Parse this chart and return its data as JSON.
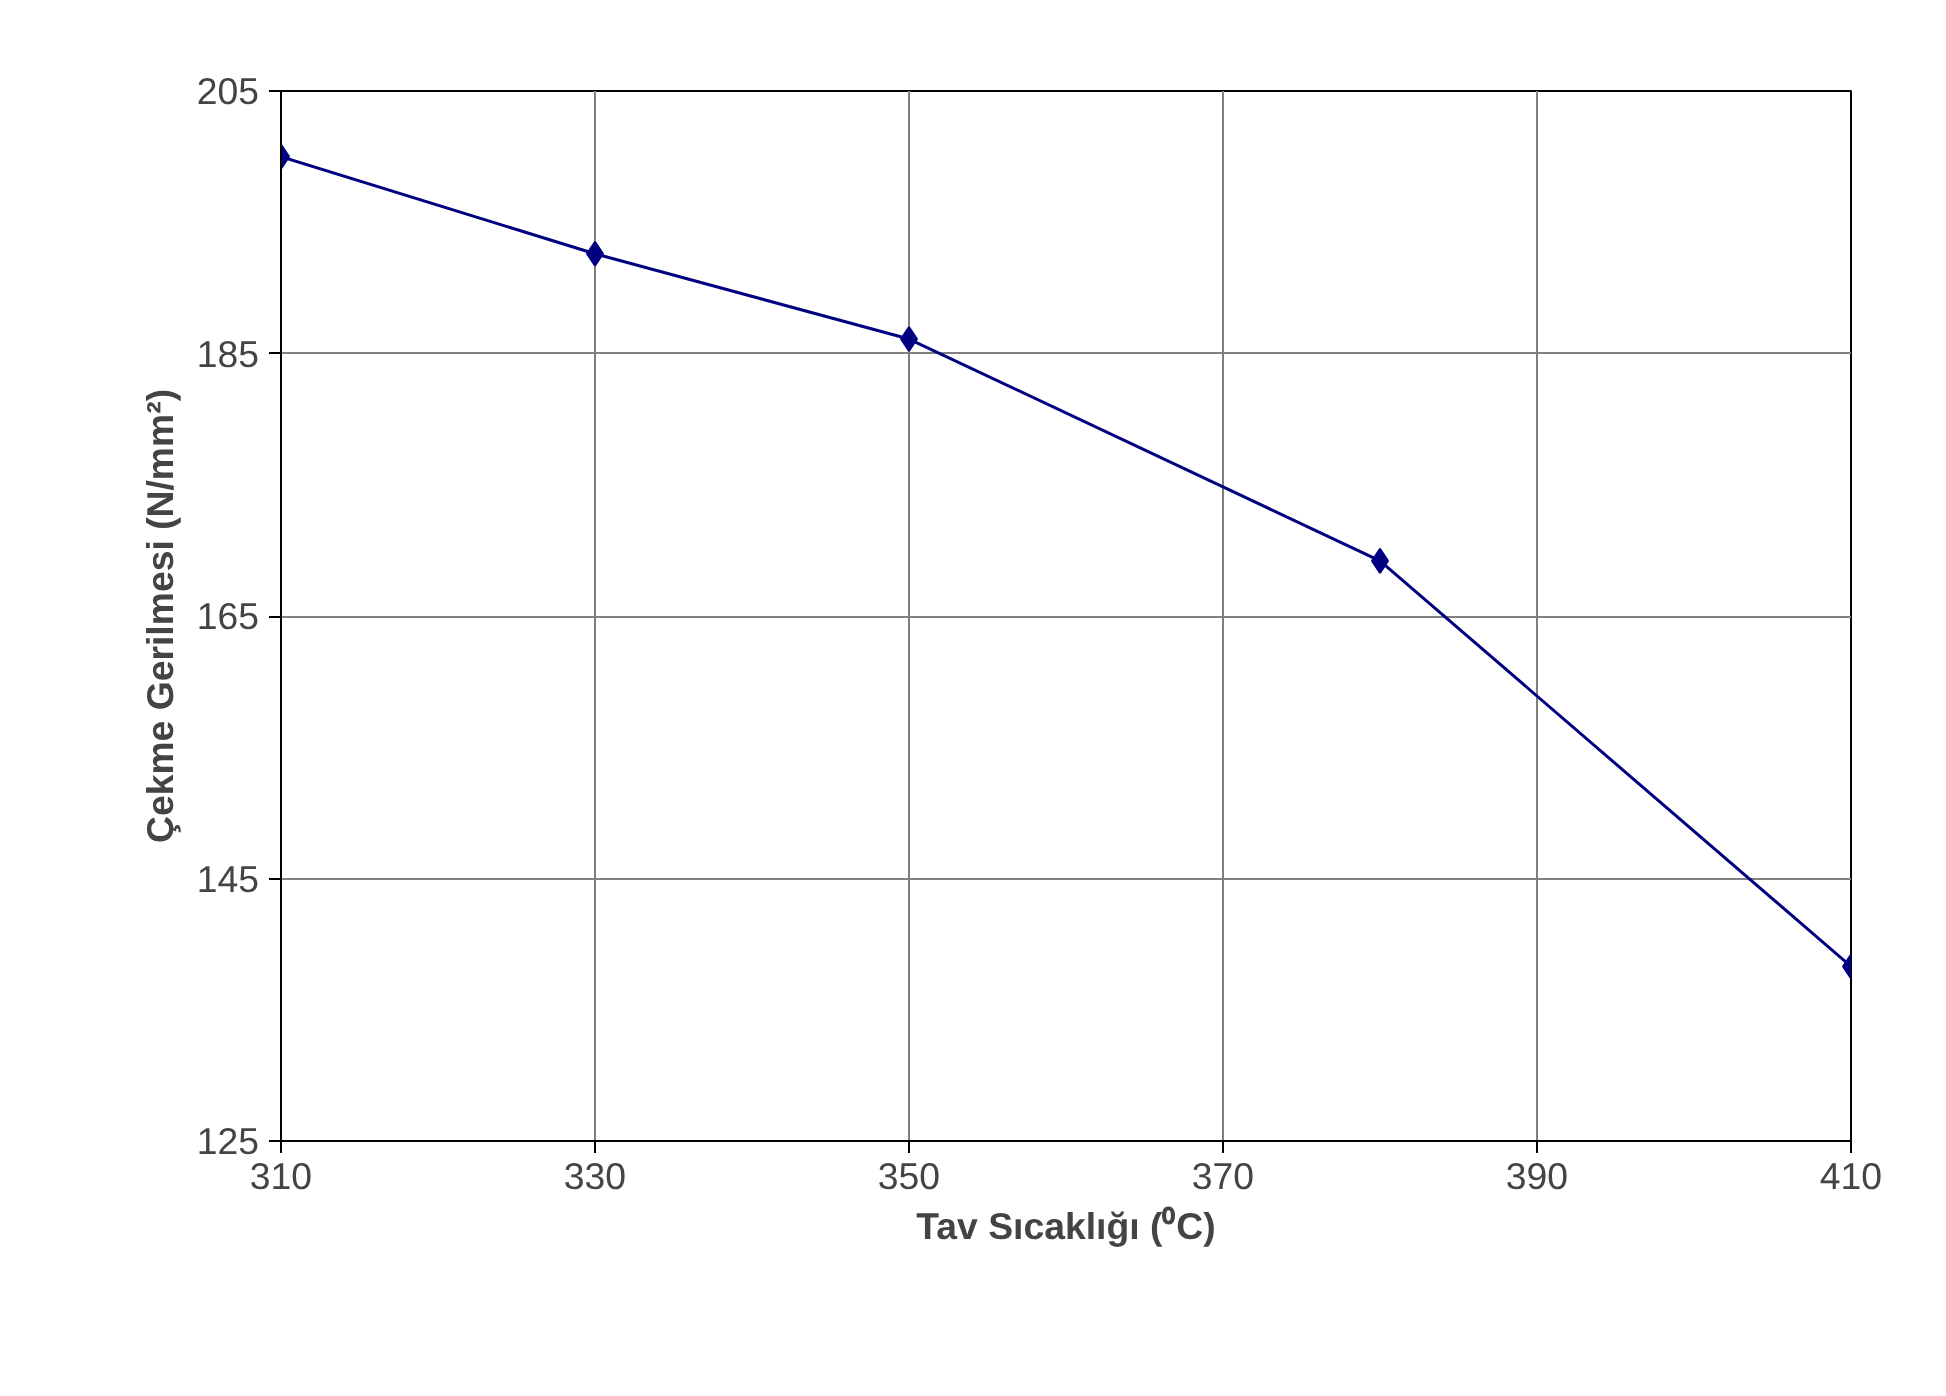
{
  "chart_data": {
    "type": "line",
    "xlabel": "Tav Sıcaklığı (⁰C)",
    "ylabel": "Çekme Gerilmesi (N/mm²)",
    "x": [
      310,
      330,
      350,
      380,
      410
    ],
    "series": [
      {
        "color": "#000080",
        "values": [
          200.0,
          192.6,
          186.1,
          169.2,
          138.3
        ]
      }
    ],
    "xlim": [
      310,
      410
    ],
    "xticks": [
      310,
      330,
      350,
      370,
      390,
      410
    ],
    "ylim": [
      125,
      205
    ],
    "yticks": [
      125,
      145,
      165,
      185,
      205
    ],
    "grid": true,
    "marker": "diamond",
    "line_style": "solid"
  }
}
